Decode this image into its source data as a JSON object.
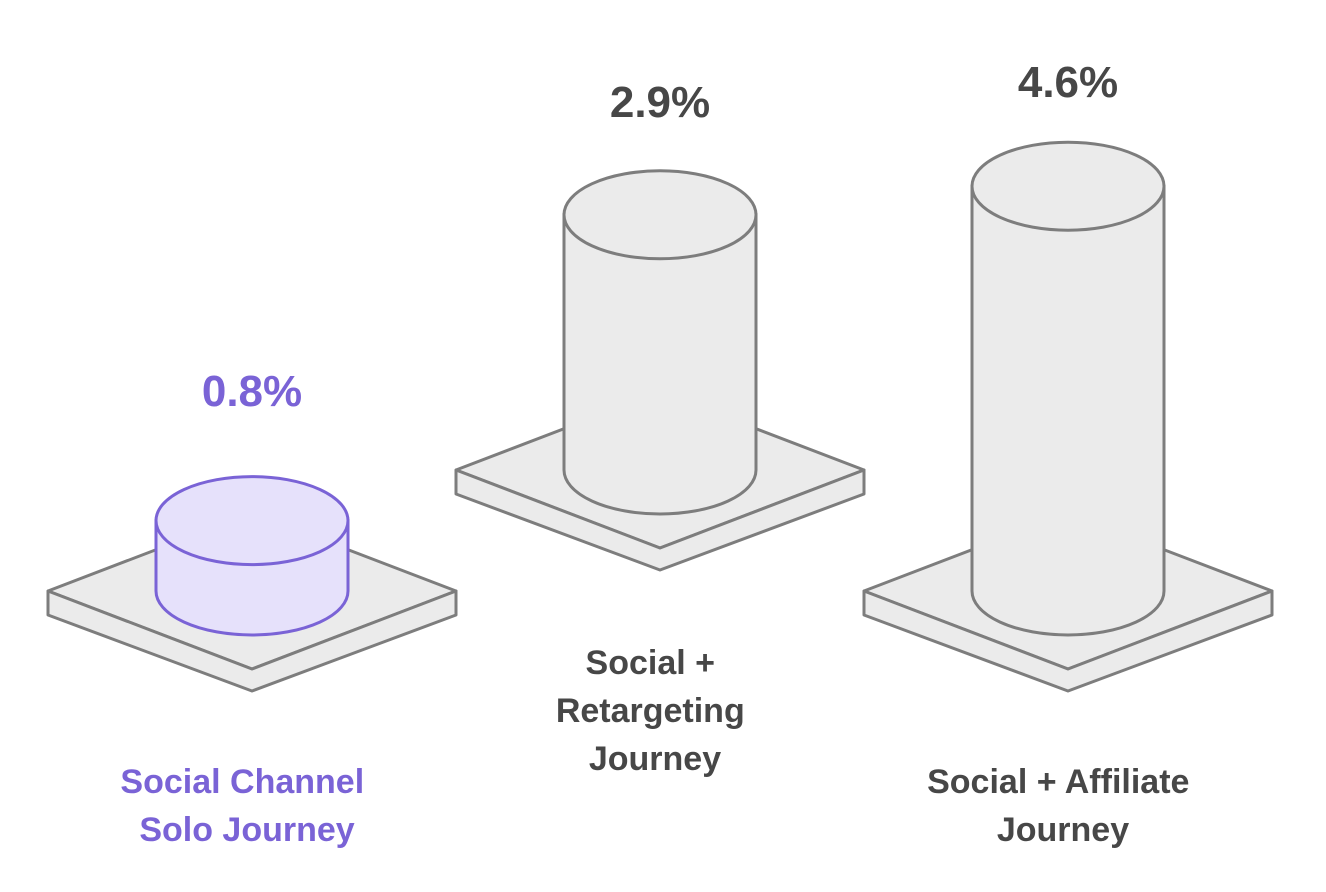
{
  "chart_data": {
    "type": "bar",
    "categories": [
      "Social Channel Solo Journey",
      "Social + Retargeting Journey",
      "Social + Affiliate Journey"
    ],
    "values": [
      0.8,
      2.9,
      4.6
    ],
    "value_labels": [
      "0.8%",
      "2.9%",
      "4.6%"
    ],
    "label_lines": [
      [
        "Social Channel",
        "Solo Journey"
      ],
      [
        "Social +",
        "Retargeting",
        "Journey"
      ],
      [
        "Social + Affiliate",
        "Journey"
      ]
    ],
    "highlighted_index": 0,
    "unit": "%",
    "style": "3d-cylinder"
  },
  "colors": {
    "highlight_stroke": "#7a63d6",
    "highlight_fill": "#e6e1fb",
    "highlight_text": "#7a63d6",
    "neutral_stroke": "#7d7d7d",
    "neutral_fill": "#ebebeb",
    "neutral_text": "#474747"
  }
}
